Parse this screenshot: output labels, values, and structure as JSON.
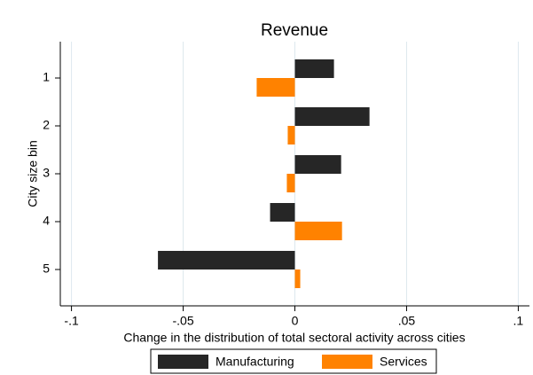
{
  "chart_data": {
    "type": "hbar",
    "title": "Revenue",
    "x_label": "Change in the distribution of total sectoral activity across cities",
    "y_label": "City size bin",
    "categories": [
      "1",
      "2",
      "3",
      "4",
      "5"
    ],
    "series": [
      {
        "name": "Manufacturing",
        "color": "#262626",
        "values": [
          0.0175,
          0.0334,
          0.0207,
          -0.0111,
          -0.0613
        ]
      },
      {
        "name": "Services",
        "color": "#ff8200",
        "values": [
          -0.0171,
          -0.0032,
          -0.0036,
          0.0211,
          0.0024
        ]
      }
    ],
    "xlim": [
      -0.105,
      0.105
    ],
    "xticks": [
      {
        "value": -0.1,
        "label": "-.1"
      },
      {
        "value": -0.05,
        "label": "-.05"
      },
      0,
      {
        "value": 0.05,
        "label": ".05"
      },
      {
        "value": 0.1,
        "label": ".1"
      }
    ],
    "grid": true,
    "legend": "bottom"
  }
}
